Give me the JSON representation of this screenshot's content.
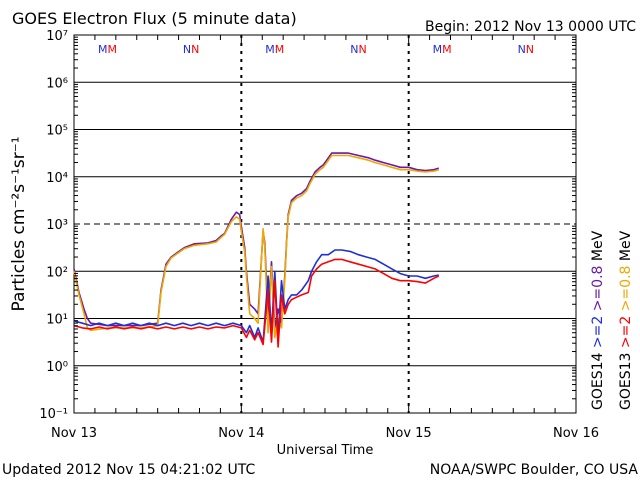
{
  "chart_data": {
    "type": "line",
    "title": "GOES Electron Flux (5 minute data)",
    "begin": "Begin: 2012 Nov 13 0000 UTC",
    "updated": "Updated 2012 Nov 15 04:21:02 UTC",
    "credit": "NOAA/SWPC Boulder, CO USA",
    "xlabel": "Universal Time",
    "ylabel": "Particles cm⁻²s⁻¹sr⁻¹",
    "x_unit": "days since 2012 Nov 13 0000 UTC",
    "xlim": [
      0,
      3
    ],
    "ylim_log10": [
      -1,
      7
    ],
    "yscale": "log",
    "x_ticks": [
      {
        "day": 0,
        "label": "Nov 13"
      },
      {
        "day": 1,
        "label": "Nov 14"
      },
      {
        "day": 2,
        "label": "Nov 15"
      },
      {
        "day": 3,
        "label": "Nov 16"
      }
    ],
    "y_ticks": [
      {
        "exp": -1,
        "label": "10⁻¹"
      },
      {
        "exp": 0,
        "label": "10⁰"
      },
      {
        "exp": 1,
        "label": "10¹"
      },
      {
        "exp": 2,
        "label": "10²"
      },
      {
        "exp": 3,
        "label": "10³"
      },
      {
        "exp": 4,
        "label": "10⁴"
      },
      {
        "exp": 5,
        "label": "10⁵"
      },
      {
        "exp": 6,
        "label": "10⁶"
      },
      {
        "exp": 7,
        "label": "10⁷"
      }
    ],
    "solid_gridlines": [
      0,
      1,
      2,
      4,
      5,
      6
    ],
    "dashed_gridlines": [
      3
    ],
    "day_boundaries_dashed": [
      1,
      2
    ],
    "mn_markers": [
      {
        "day": 0.2,
        "text": "MM"
      },
      {
        "day": 0.7,
        "text": "NN"
      },
      {
        "day": 1.2,
        "text": "MM"
      },
      {
        "day": 1.7,
        "text": "NN"
      },
      {
        "day": 2.2,
        "text": "MM"
      },
      {
        "day": 2.7,
        "text": "NN"
      }
    ],
    "colors": {
      "goes14_gt2": "#1f2fd6",
      "goes13_gt2": "#ff0000",
      "goes14_gt08": "#6a1aa8",
      "goes13_gt08": "#f0a800"
    },
    "legend": {
      "position": "right",
      "columns": [
        {
          "satellite": "GOES14",
          "low": ">=2",
          "high": ">=0.8",
          "unit": "MeV",
          "low_color": "#1f2fd6",
          "high_color": "#6a1aa8"
        },
        {
          "satellite": "GOES13",
          "low": ">=2",
          "high": ">=0.8",
          "unit": "MeV",
          "low_color": "#ff0000",
          "high_color": "#f0a800"
        }
      ]
    },
    "series": [
      {
        "name": "GOES14 >=0.8 MeV",
        "color": "#6a1aa8",
        "log10": [
          [
            0,
            2.05
          ],
          [
            0.03,
            1.55
          ],
          [
            0.06,
            1.2
          ],
          [
            0.08,
            1.0
          ],
          [
            0.1,
            0.9
          ],
          [
            0.2,
            0.85
          ],
          [
            0.3,
            0.85
          ],
          [
            0.4,
            0.85
          ],
          [
            0.5,
            0.9
          ],
          [
            0.52,
            1.6
          ],
          [
            0.55,
            2.15
          ],
          [
            0.58,
            2.3
          ],
          [
            0.62,
            2.4
          ],
          [
            0.66,
            2.5
          ],
          [
            0.72,
            2.58
          ],
          [
            0.8,
            2.6
          ],
          [
            0.85,
            2.65
          ],
          [
            0.88,
            2.75
          ],
          [
            0.9,
            2.8
          ],
          [
            0.94,
            3.1
          ],
          [
            0.97,
            3.25
          ],
          [
            0.99,
            3.2
          ],
          [
            1.0,
            2.95
          ],
          [
            1.02,
            2.5
          ],
          [
            1.03,
            2.0
          ],
          [
            1.05,
            1.3
          ],
          [
            1.08,
            1.2
          ],
          [
            1.1,
            1.1
          ],
          [
            1.13,
            2.85
          ],
          [
            1.14,
            2.6
          ],
          [
            1.16,
            1.0
          ],
          [
            1.18,
            2.2
          ],
          [
            1.2,
            0.8
          ],
          [
            1.22,
            1.2
          ],
          [
            1.24,
            0.9
          ],
          [
            1.26,
            1.9
          ],
          [
            1.27,
            2.6
          ],
          [
            1.28,
            3.2
          ],
          [
            1.3,
            3.5
          ],
          [
            1.33,
            3.6
          ],
          [
            1.36,
            3.65
          ],
          [
            1.39,
            3.75
          ],
          [
            1.41,
            3.9
          ],
          [
            1.44,
            4.1
          ],
          [
            1.47,
            4.2
          ],
          [
            1.49,
            4.25
          ],
          [
            1.51,
            4.35
          ],
          [
            1.54,
            4.5
          ],
          [
            1.58,
            4.5
          ],
          [
            1.64,
            4.5
          ],
          [
            1.7,
            4.45
          ],
          [
            1.76,
            4.4
          ],
          [
            1.8,
            4.35
          ],
          [
            1.85,
            4.3
          ],
          [
            1.9,
            4.25
          ],
          [
            1.95,
            4.2
          ],
          [
            2.0,
            4.2
          ],
          [
            2.05,
            4.15
          ],
          [
            2.1,
            4.13
          ],
          [
            2.15,
            4.15
          ],
          [
            2.18,
            4.18
          ]
        ]
      },
      {
        "name": "GOES13 >=0.8 MeV",
        "color": "#f0a800",
        "log10": [
          [
            0,
            2.0
          ],
          [
            0.03,
            1.5
          ],
          [
            0.06,
            1.1
          ],
          [
            0.08,
            0.8
          ],
          [
            0.1,
            0.75
          ],
          [
            0.2,
            0.8
          ],
          [
            0.3,
            0.8
          ],
          [
            0.4,
            0.8
          ],
          [
            0.5,
            0.85
          ],
          [
            0.52,
            1.55
          ],
          [
            0.55,
            2.1
          ],
          [
            0.58,
            2.28
          ],
          [
            0.62,
            2.38
          ],
          [
            0.66,
            2.48
          ],
          [
            0.72,
            2.55
          ],
          [
            0.8,
            2.58
          ],
          [
            0.85,
            2.62
          ],
          [
            0.88,
            2.72
          ],
          [
            0.9,
            2.78
          ],
          [
            0.94,
            3.05
          ],
          [
            0.97,
            3.15
          ],
          [
            0.99,
            3.1
          ],
          [
            1.0,
            2.85
          ],
          [
            1.02,
            2.4
          ],
          [
            1.03,
            1.9
          ],
          [
            1.05,
            1.1
          ],
          [
            1.08,
            1.0
          ],
          [
            1.1,
            0.9
          ],
          [
            1.13,
            2.9
          ],
          [
            1.14,
            2.5
          ],
          [
            1.16,
            0.7
          ],
          [
            1.18,
            2.1
          ],
          [
            1.2,
            0.6
          ],
          [
            1.22,
            1.0
          ],
          [
            1.24,
            0.8
          ],
          [
            1.26,
            1.8
          ],
          [
            1.27,
            2.55
          ],
          [
            1.28,
            3.15
          ],
          [
            1.3,
            3.45
          ],
          [
            1.33,
            3.55
          ],
          [
            1.36,
            3.6
          ],
          [
            1.39,
            3.7
          ],
          [
            1.41,
            3.85
          ],
          [
            1.44,
            4.05
          ],
          [
            1.47,
            4.15
          ],
          [
            1.49,
            4.2
          ],
          [
            1.51,
            4.3
          ],
          [
            1.54,
            4.45
          ],
          [
            1.58,
            4.45
          ],
          [
            1.64,
            4.45
          ],
          [
            1.7,
            4.4
          ],
          [
            1.76,
            4.35
          ],
          [
            1.8,
            4.3
          ],
          [
            1.85,
            4.25
          ],
          [
            1.9,
            4.2
          ],
          [
            1.95,
            4.15
          ],
          [
            2.0,
            4.15
          ],
          [
            2.05,
            4.12
          ],
          [
            2.1,
            4.1
          ],
          [
            2.15,
            4.12
          ],
          [
            2.18,
            4.15
          ]
        ]
      },
      {
        "name": "GOES14 >=2 MeV",
        "color": "#1f2fd6",
        "log10": [
          [
            0,
            0.95
          ],
          [
            0.05,
            0.9
          ],
          [
            0.1,
            0.85
          ],
          [
            0.15,
            0.9
          ],
          [
            0.2,
            0.85
          ],
          [
            0.25,
            0.9
          ],
          [
            0.3,
            0.85
          ],
          [
            0.35,
            0.9
          ],
          [
            0.4,
            0.85
          ],
          [
            0.45,
            0.9
          ],
          [
            0.5,
            0.85
          ],
          [
            0.55,
            0.9
          ],
          [
            0.6,
            0.85
          ],
          [
            0.65,
            0.9
          ],
          [
            0.7,
            0.85
          ],
          [
            0.75,
            0.9
          ],
          [
            0.8,
            0.85
          ],
          [
            0.85,
            0.9
          ],
          [
            0.9,
            0.85
          ],
          [
            0.95,
            0.9
          ],
          [
            1.0,
            0.85
          ],
          [
            1.03,
            0.7
          ],
          [
            1.05,
            0.85
          ],
          [
            1.08,
            0.6
          ],
          [
            1.1,
            0.8
          ],
          [
            1.13,
            0.5
          ],
          [
            1.16,
            1.9
          ],
          [
            1.18,
            0.7
          ],
          [
            1.2,
            2.0
          ],
          [
            1.22,
            0.6
          ],
          [
            1.24,
            1.8
          ],
          [
            1.26,
            1.2
          ],
          [
            1.28,
            1.4
          ],
          [
            1.3,
            1.5
          ],
          [
            1.33,
            1.5
          ],
          [
            1.36,
            1.6
          ],
          [
            1.4,
            1.8
          ],
          [
            1.42,
            2.0
          ],
          [
            1.45,
            2.2
          ],
          [
            1.48,
            2.35
          ],
          [
            1.52,
            2.35
          ],
          [
            1.56,
            2.45
          ],
          [
            1.6,
            2.45
          ],
          [
            1.65,
            2.42
          ],
          [
            1.7,
            2.35
          ],
          [
            1.75,
            2.3
          ],
          [
            1.8,
            2.25
          ],
          [
            1.85,
            2.15
          ],
          [
            1.9,
            2.05
          ],
          [
            1.95,
            1.95
          ],
          [
            2.0,
            1.9
          ],
          [
            2.05,
            1.9
          ],
          [
            2.1,
            1.85
          ],
          [
            2.15,
            1.9
          ],
          [
            2.18,
            1.92
          ]
        ]
      },
      {
        "name": "GOES13 >=2 MeV",
        "color": "#ff0000",
        "log10": [
          [
            0,
            0.85
          ],
          [
            0.05,
            0.8
          ],
          [
            0.1,
            0.78
          ],
          [
            0.15,
            0.82
          ],
          [
            0.2,
            0.78
          ],
          [
            0.25,
            0.82
          ],
          [
            0.3,
            0.78
          ],
          [
            0.35,
            0.82
          ],
          [
            0.4,
            0.78
          ],
          [
            0.45,
            0.82
          ],
          [
            0.5,
            0.78
          ],
          [
            0.55,
            0.82
          ],
          [
            0.6,
            0.78
          ],
          [
            0.65,
            0.82
          ],
          [
            0.7,
            0.78
          ],
          [
            0.75,
            0.82
          ],
          [
            0.8,
            0.78
          ],
          [
            0.85,
            0.82
          ],
          [
            0.9,
            0.8
          ],
          [
            0.95,
            0.85
          ],
          [
            1.0,
            0.8
          ],
          [
            1.03,
            0.6
          ],
          [
            1.05,
            0.75
          ],
          [
            1.08,
            0.55
          ],
          [
            1.1,
            0.7
          ],
          [
            1.13,
            0.45
          ],
          [
            1.16,
            1.6
          ],
          [
            1.18,
            0.5
          ],
          [
            1.2,
            1.8
          ],
          [
            1.22,
            0.4
          ],
          [
            1.24,
            1.5
          ],
          [
            1.26,
            1.1
          ],
          [
            1.28,
            1.3
          ],
          [
            1.3,
            1.4
          ],
          [
            1.33,
            1.45
          ],
          [
            1.36,
            1.5
          ],
          [
            1.4,
            1.55
          ],
          [
            1.42,
            1.9
          ],
          [
            1.45,
            2.05
          ],
          [
            1.48,
            2.15
          ],
          [
            1.52,
            2.2
          ],
          [
            1.56,
            2.25
          ],
          [
            1.6,
            2.25
          ],
          [
            1.65,
            2.2
          ],
          [
            1.7,
            2.15
          ],
          [
            1.75,
            2.1
          ],
          [
            1.8,
            2.05
          ],
          [
            1.85,
            1.95
          ],
          [
            1.9,
            1.85
          ],
          [
            1.95,
            1.8
          ],
          [
            2.0,
            1.8
          ],
          [
            2.05,
            1.78
          ],
          [
            2.1,
            1.75
          ],
          [
            2.15,
            1.85
          ],
          [
            2.18,
            1.9
          ]
        ]
      }
    ]
  }
}
